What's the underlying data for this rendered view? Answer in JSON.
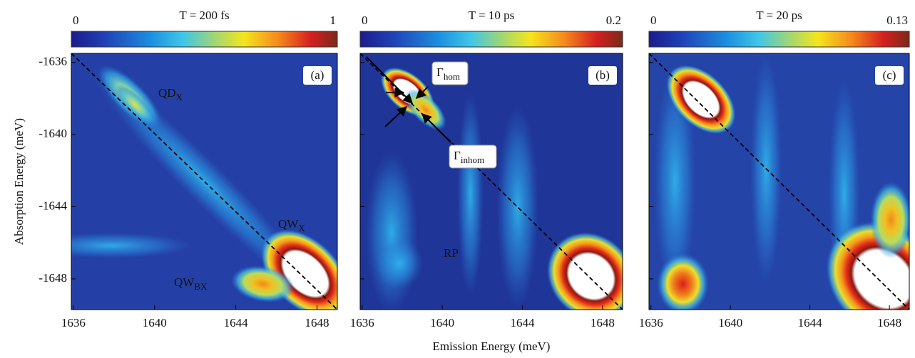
{
  "chart_data": [
    {
      "type": "heatmap",
      "title": "T = 200 fs",
      "panel_label": "(a)",
      "colorbar": {
        "lim": [
          0,
          1
        ],
        "ticks": [
          0,
          1
        ]
      },
      "xlim": [
        1635.9,
        1649.0
      ],
      "xticks": [
        1636,
        1640,
        1644,
        1648
      ],
      "ylim": [
        -1635.5,
        -1649.7
      ],
      "yticks": [
        -1636,
        -1640,
        -1644,
        -1648
      ],
      "ylabel": "Absorption Energy (meV)",
      "annotations": [
        {
          "text": "QD",
          "sub": "X"
        },
        {
          "text": "QW",
          "sub": "X"
        },
        {
          "text": "QW",
          "sub": "BX"
        }
      ]
    },
    {
      "type": "heatmap",
      "title": "T = 10 ps",
      "panel_label": "(b)",
      "colorbar": {
        "lim": [
          0,
          0.2
        ],
        "ticks": [
          0,
          0.2
        ]
      },
      "xlim": [
        1635.9,
        1649.0
      ],
      "xticks": [
        1636,
        1640,
        1644,
        1648
      ],
      "ylim": [
        -1635.5,
        -1649.7
      ],
      "yticks": [
        -1636,
        -1640,
        -1644,
        -1648
      ],
      "xlabel": "Emission Energy (meV)",
      "annotations": [
        {
          "text": "Γ",
          "sub": "hom"
        },
        {
          "text": "Γ",
          "sub": "inhom"
        },
        {
          "text": "RP"
        }
      ]
    },
    {
      "type": "heatmap",
      "title": "T = 20 ps",
      "panel_label": "(c)",
      "colorbar": {
        "lim": [
          0,
          0.13
        ],
        "ticks": [
          0,
          0.13
        ]
      },
      "xlim": [
        1635.9,
        1649.0
      ],
      "xticks": [
        1636,
        1640,
        1644,
        1648
      ],
      "ylim": [
        -1635.5,
        -1649.7
      ],
      "yticks": [
        -1636,
        -1640,
        -1644,
        -1648
      ],
      "annotations": []
    }
  ]
}
